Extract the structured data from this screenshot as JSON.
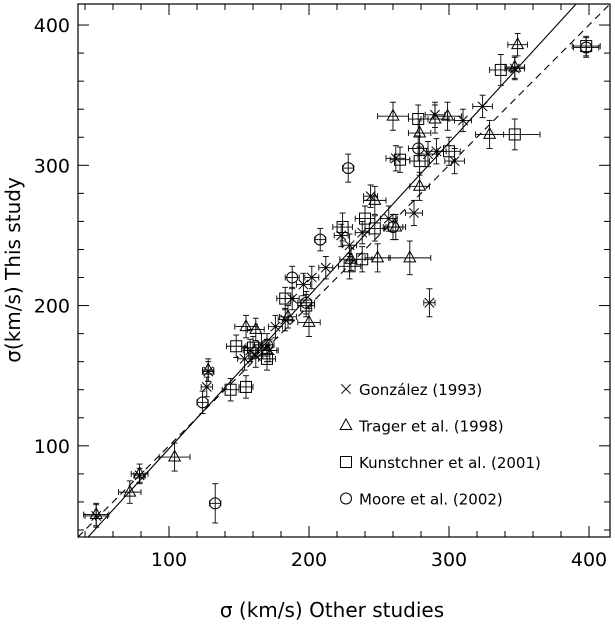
{
  "chart_data": {
    "type": "scatter",
    "title": "",
    "xlabel": "σ (km/s) Other studies",
    "ylabel": "σ(km/s) This study",
    "xlim": [
      35,
      415
    ],
    "ylim": [
      35,
      415
    ],
    "xticks": [
      100,
      200,
      300,
      400
    ],
    "yticks": [
      100,
      200,
      300,
      400
    ],
    "x_tick_labels": [
      "100",
      "200",
      "300",
      "400"
    ],
    "y_tick_labels": [
      "100",
      "200",
      "300",
      "400"
    ],
    "legend_position": "bottom-right",
    "reference_lines": [
      {
        "style": "solid",
        "slope": 1.09,
        "intercept": -11
      },
      {
        "style": "dashed",
        "slope": 1.0,
        "intercept": 0
      }
    ],
    "series": [
      {
        "name": "González (1993)",
        "marker": "cross",
        "points": [
          {
            "x": 48,
            "y": 50,
            "xerr": 8,
            "yerr": 8
          },
          {
            "x": 79,
            "y": 79,
            "xerr": 4,
            "yerr": 5
          },
          {
            "x": 127,
            "y": 142,
            "xerr": 4,
            "yerr": 7
          },
          {
            "x": 128,
            "y": 153,
            "xerr": 4,
            "yerr": 7
          },
          {
            "x": 154,
            "y": 162,
            "xerr": 5,
            "yerr": 8
          },
          {
            "x": 158,
            "y": 168,
            "xerr": 5,
            "yerr": 8
          },
          {
            "x": 162,
            "y": 164,
            "xerr": 5,
            "yerr": 8
          },
          {
            "x": 166,
            "y": 172,
            "xerr": 5,
            "yerr": 8
          },
          {
            "x": 172,
            "y": 168,
            "xerr": 5,
            "yerr": 8
          },
          {
            "x": 176,
            "y": 185,
            "xerr": 5,
            "yerr": 8
          },
          {
            "x": 183,
            "y": 190,
            "xerr": 5,
            "yerr": 8
          },
          {
            "x": 188,
            "y": 205,
            "xerr": 5,
            "yerr": 8
          },
          {
            "x": 196,
            "y": 215,
            "xerr": 5,
            "yerr": 8
          },
          {
            "x": 202,
            "y": 220,
            "xerr": 5,
            "yerr": 8
          },
          {
            "x": 212,
            "y": 227,
            "xerr": 5,
            "yerr": 8
          },
          {
            "x": 223,
            "y": 250,
            "xerr": 5,
            "yerr": 8
          },
          {
            "x": 229,
            "y": 243,
            "xerr": 5,
            "yerr": 8
          },
          {
            "x": 238,
            "y": 252,
            "xerr": 5,
            "yerr": 8
          },
          {
            "x": 244,
            "y": 278,
            "xerr": 5,
            "yerr": 8
          },
          {
            "x": 257,
            "y": 262,
            "xerr": 6,
            "yerr": 9
          },
          {
            "x": 275,
            "y": 266,
            "xerr": 6,
            "yerr": 9
          },
          {
            "x": 262,
            "y": 305,
            "xerr": 7,
            "yerr": 9
          },
          {
            "x": 285,
            "y": 308,
            "xerr": 7,
            "yerr": 9
          },
          {
            "x": 291,
            "y": 310,
            "xerr": 7,
            "yerr": 9
          },
          {
            "x": 304,
            "y": 303,
            "xerr": 7,
            "yerr": 9
          },
          {
            "x": 290,
            "y": 336,
            "xerr": 7,
            "yerr": 9
          },
          {
            "x": 310,
            "y": 332,
            "xerr": 6,
            "yerr": 8
          },
          {
            "x": 324,
            "y": 342,
            "xerr": 7,
            "yerr": 8
          },
          {
            "x": 347,
            "y": 369,
            "xerr": 7,
            "yerr": 8
          },
          {
            "x": 286,
            "y": 202,
            "xerr": 4,
            "yerr": 10
          }
        ]
      },
      {
        "name": "Trager et al. (1998)",
        "marker": "triangle",
        "points": [
          {
            "x": 48,
            "y": 51,
            "xerr": 9,
            "yerr": 8
          },
          {
            "x": 72,
            "y": 67,
            "xerr": 8,
            "yerr": 8
          },
          {
            "x": 79,
            "y": 80,
            "xerr": 6,
            "yerr": 7
          },
          {
            "x": 104,
            "y": 92,
            "xerr": 11,
            "yerr": 10
          },
          {
            "x": 128,
            "y": 154,
            "xerr": 4,
            "yerr": 8
          },
          {
            "x": 155,
            "y": 185,
            "xerr": 8,
            "yerr": 8
          },
          {
            "x": 162,
            "y": 183,
            "xerr": 6,
            "yerr": 8
          },
          {
            "x": 170,
            "y": 168,
            "xerr": 8,
            "yerr": 8
          },
          {
            "x": 185,
            "y": 192,
            "xerr": 6,
            "yerr": 8
          },
          {
            "x": 200,
            "y": 188,
            "xerr": 8,
            "yerr": 10
          },
          {
            "x": 230,
            "y": 233,
            "xerr": 8,
            "yerr": 8
          },
          {
            "x": 249,
            "y": 234,
            "xerr": 9,
            "yerr": 10
          },
          {
            "x": 262,
            "y": 256,
            "xerr": 7,
            "yerr": 9
          },
          {
            "x": 272,
            "y": 234,
            "xerr": 15,
            "yerr": 12
          },
          {
            "x": 279,
            "y": 285,
            "xerr": 7,
            "yerr": 10
          },
          {
            "x": 247,
            "y": 275,
            "xerr": 8,
            "yerr": 10
          },
          {
            "x": 260,
            "y": 335,
            "xerr": 11,
            "yerr": 10
          },
          {
            "x": 279,
            "y": 323,
            "xerr": 8,
            "yerr": 10
          },
          {
            "x": 290,
            "y": 333,
            "xerr": 10,
            "yerr": 10
          },
          {
            "x": 299,
            "y": 335,
            "xerr": 10,
            "yerr": 10
          },
          {
            "x": 329,
            "y": 322,
            "xerr": 10,
            "yerr": 10
          },
          {
            "x": 349,
            "y": 386,
            "xerr": 7,
            "yerr": 8
          },
          {
            "x": 347,
            "y": 370,
            "xerr": 7,
            "yerr": 8
          }
        ]
      },
      {
        "name": "Kunstchner et al. (2001)",
        "marker": "square",
        "points": [
          {
            "x": 144,
            "y": 140,
            "xerr": 6,
            "yerr": 8
          },
          {
            "x": 148,
            "y": 171,
            "xerr": 7,
            "yerr": 8
          },
          {
            "x": 155,
            "y": 142,
            "xerr": 5,
            "yerr": 8
          },
          {
            "x": 160,
            "y": 170,
            "xerr": 6,
            "yerr": 8
          },
          {
            "x": 170,
            "y": 162,
            "xerr": 6,
            "yerr": 8
          },
          {
            "x": 183,
            "y": 205,
            "xerr": 6,
            "yerr": 8
          },
          {
            "x": 198,
            "y": 200,
            "xerr": 6,
            "yerr": 8
          },
          {
            "x": 224,
            "y": 256,
            "xerr": 7,
            "yerr": 10
          },
          {
            "x": 229,
            "y": 228,
            "xerr": 8,
            "yerr": 9
          },
          {
            "x": 238,
            "y": 233,
            "xerr": 7,
            "yerr": 9
          },
          {
            "x": 240,
            "y": 262,
            "xerr": 7,
            "yerr": 9
          },
          {
            "x": 247,
            "y": 255,
            "xerr": 7,
            "yerr": 9
          },
          {
            "x": 265,
            "y": 304,
            "xerr": 7,
            "yerr": 9
          },
          {
            "x": 278,
            "y": 333,
            "xerr": 7,
            "yerr": 10
          },
          {
            "x": 279,
            "y": 303,
            "xerr": 7,
            "yerr": 10
          },
          {
            "x": 300,
            "y": 310,
            "xerr": 8,
            "yerr": 10
          },
          {
            "x": 337,
            "y": 368,
            "xerr": 8,
            "yerr": 11
          },
          {
            "x": 347,
            "y": 322,
            "xerr": 18,
            "yerr": 11
          },
          {
            "x": 398,
            "y": 385,
            "xerr": 10,
            "yerr": 7
          }
        ]
      },
      {
        "name": "Moore et al. (2002)",
        "marker": "circle",
        "points": [
          {
            "x": 124,
            "y": 131,
            "xerr": 4,
            "yerr": 8
          },
          {
            "x": 133,
            "y": 59,
            "xerr": 4,
            "yerr": 14
          },
          {
            "x": 170,
            "y": 172,
            "xerr": 5,
            "yerr": 8
          },
          {
            "x": 188,
            "y": 220,
            "xerr": 5,
            "yerr": 8
          },
          {
            "x": 198,
            "y": 202,
            "xerr": 6,
            "yerr": 8
          },
          {
            "x": 208,
            "y": 247,
            "xerr": 4,
            "yerr": 8
          },
          {
            "x": 228,
            "y": 298,
            "xerr": 4,
            "yerr": 10
          },
          {
            "x": 260,
            "y": 256,
            "xerr": 7,
            "yerr": 9
          },
          {
            "x": 278,
            "y": 312,
            "xerr": 7,
            "yerr": 9
          },
          {
            "x": 398,
            "y": 384,
            "xerr": 9,
            "yerr": 7
          }
        ]
      }
    ]
  }
}
